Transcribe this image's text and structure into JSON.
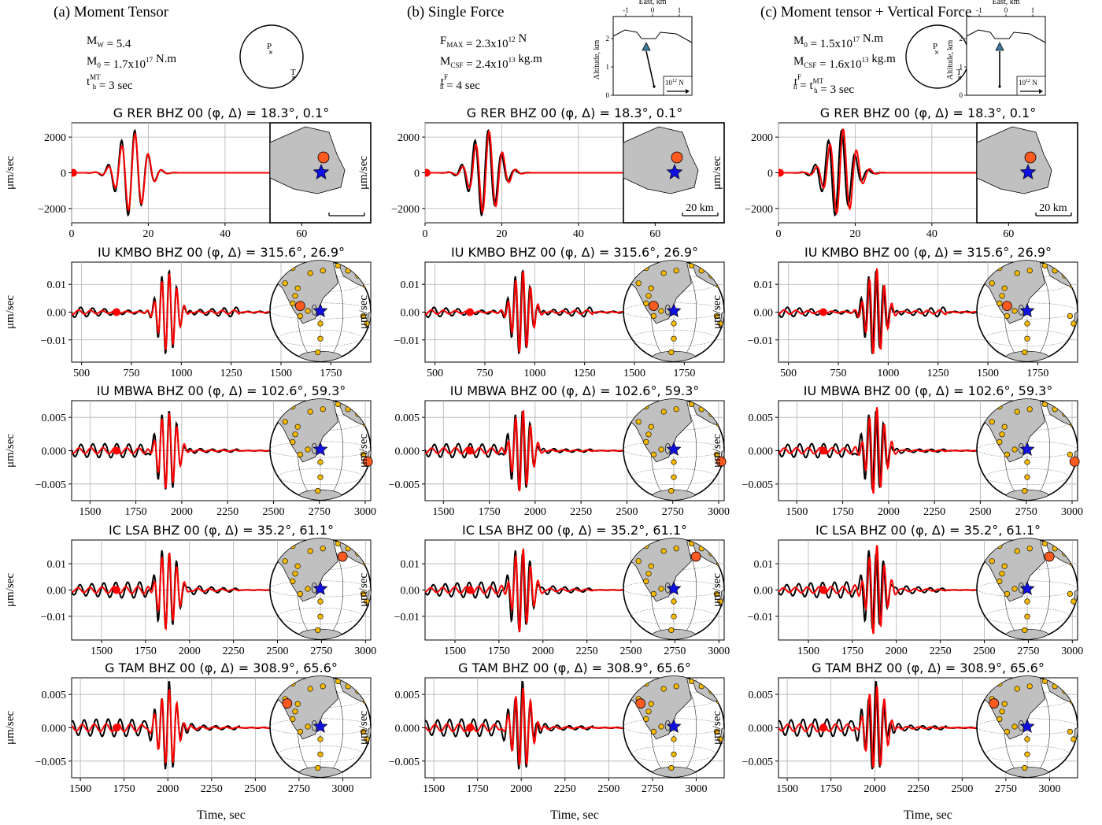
{
  "columns": [
    {
      "title": "(a) Moment Tensor",
      "params": [
        {
          "base": "M",
          "sub": "W",
          "sup": "",
          "rest": " = 5.4"
        },
        {
          "base": "M",
          "sub": "0",
          "sup": "",
          "rest": " = 1.7x10",
          "exp": "17",
          "tail": " N.m"
        },
        {
          "base": "t",
          "sub": "h",
          "sup": "MT",
          "rest": " = 3 sec"
        }
      ],
      "beachball": {
        "p_label": "P",
        "t_label": "T"
      },
      "inset": null
    },
    {
      "title": "(b) Single Force",
      "params": [
        {
          "base": "F",
          "sub": "MAX",
          "sup": "",
          "rest": " = 2.3x10",
          "exp": "12",
          "tail": " N"
        },
        {
          "base": "M",
          "sub": "CSF",
          "sup": "",
          "rest": " = 2.4x10",
          "exp": "13",
          "tail": " kg.m"
        },
        {
          "base": "t",
          "sub": "h",
          "sup": "F",
          "rest": " = 4 sec"
        }
      ],
      "beachball": null,
      "inset": {
        "xlabel": "East, km",
        "ylabel": "Altitude, km",
        "xticks": [
          "-1",
          "0",
          "1"
        ],
        "yticks": [
          "0",
          "1",
          "2"
        ],
        "scale_label": "10",
        "scale_exp": "12",
        "scale_unit": " N"
      }
    },
    {
      "title": "(c) Moment tensor + Vertical Force",
      "params": [
        {
          "base": "M",
          "sub": "0",
          "sup": "",
          "rest": " = 1.5x10",
          "exp": "17",
          "tail": " N.m"
        },
        {
          "base": "M",
          "sub": "CSF",
          "sup": "",
          "rest": " = 1.6x10",
          "exp": "13",
          "tail": " kg.m"
        },
        {
          "base": "t",
          "sub": "h",
          "sup": "F",
          "rest": " = t",
          "sub2": "h",
          "sup2": "MT",
          "tail": " = 3 sec"
        }
      ],
      "beachball": {
        "p_label": "P",
        "t_label": "T"
      },
      "inset": {
        "xlabel": "East, km",
        "ylabel": "Altitude, km",
        "xticks": [
          "-1",
          "0",
          "1"
        ],
        "yticks": [
          "0",
          "1",
          "2"
        ],
        "scale_label": "10",
        "scale_exp": "12",
        "scale_unit": " N"
      }
    }
  ],
  "ylabel": "μm/sec",
  "xlabel": "Time, sec",
  "scale_bar_label": "20 km",
  "colors": {
    "observed": "#000000",
    "synthetic": "#ff0000",
    "station": "#ff5a1f",
    "source": "#1010e0",
    "land": "#c0c0c0"
  },
  "chart_data": [
    {
      "type": "line",
      "title": "G RER BHZ 00 (φ, Δ) = 18.3°, 0.1°",
      "xlim": [
        0,
        78
      ],
      "ylim": [
        -2800,
        2800
      ],
      "xticks": [
        0,
        20,
        40,
        60
      ],
      "yticks": [
        -2000,
        0,
        2000
      ],
      "ytick_labels": [
        "−2000",
        "0",
        "2000"
      ],
      "map": "local",
      "series": [
        {
          "name": "observed"
        },
        {
          "name": "synthetic"
        }
      ]
    },
    {
      "type": "line",
      "title": "IU KMBO BHZ 00 (φ, Δ) = 315.6°, 26.9°",
      "xlim": [
        450,
        1950
      ],
      "ylim": [
        -0.018,
        0.018
      ],
      "xticks": [
        500,
        750,
        1000,
        1250,
        1500,
        1750
      ],
      "yticks": [
        -0.01,
        0,
        0.01
      ],
      "ytick_labels": [
        "−0.01",
        "0.00",
        "0.01"
      ],
      "map": "globe",
      "station_marker": [
        0.3,
        0.45
      ]
    },
    {
      "type": "line",
      "title": "IU MBWA BHZ 00 (φ, Δ) = 102.6°, 59.3°",
      "xlim": [
        1400,
        3030
      ],
      "ylim": [
        -0.0075,
        0.0075
      ],
      "xticks": [
        1500,
        1750,
        2000,
        2250,
        2500,
        2750,
        3000
      ],
      "yticks": [
        -0.005,
        0,
        0.005
      ],
      "ytick_labels": [
        "−0.005",
        "0.000",
        "0.005"
      ],
      "map": "globe",
      "station_marker": [
        0.97,
        0.62
      ]
    },
    {
      "type": "line",
      "title": "IC LSA BHZ 00 (φ, Δ) = 35.2°, 61.1°",
      "xlim": [
        1330,
        3030
      ],
      "ylim": [
        -0.019,
        0.019
      ],
      "xticks": [
        1500,
        1750,
        2000,
        2250,
        2500,
        2750,
        3000
      ],
      "yticks": [
        -0.01,
        0,
        0.01
      ],
      "ytick_labels": [
        "−0.01",
        "0.00",
        "0.01"
      ],
      "map": "globe",
      "station_marker": [
        0.72,
        0.18
      ]
    },
    {
      "type": "line",
      "title": "G TAM BHZ 00 (φ, Δ) = 308.9°, 65.6°",
      "xlim": [
        1450,
        3160
      ],
      "ylim": [
        -0.0075,
        0.0075
      ],
      "xticks": [
        1500,
        1750,
        2000,
        2250,
        2500,
        2750,
        3000
      ],
      "yticks": [
        -0.005,
        0,
        0.005
      ],
      "ytick_labels": [
        "−0.005",
        "0.000",
        "0.005"
      ],
      "map": "globe",
      "station_marker": [
        0.17,
        0.27
      ]
    }
  ]
}
